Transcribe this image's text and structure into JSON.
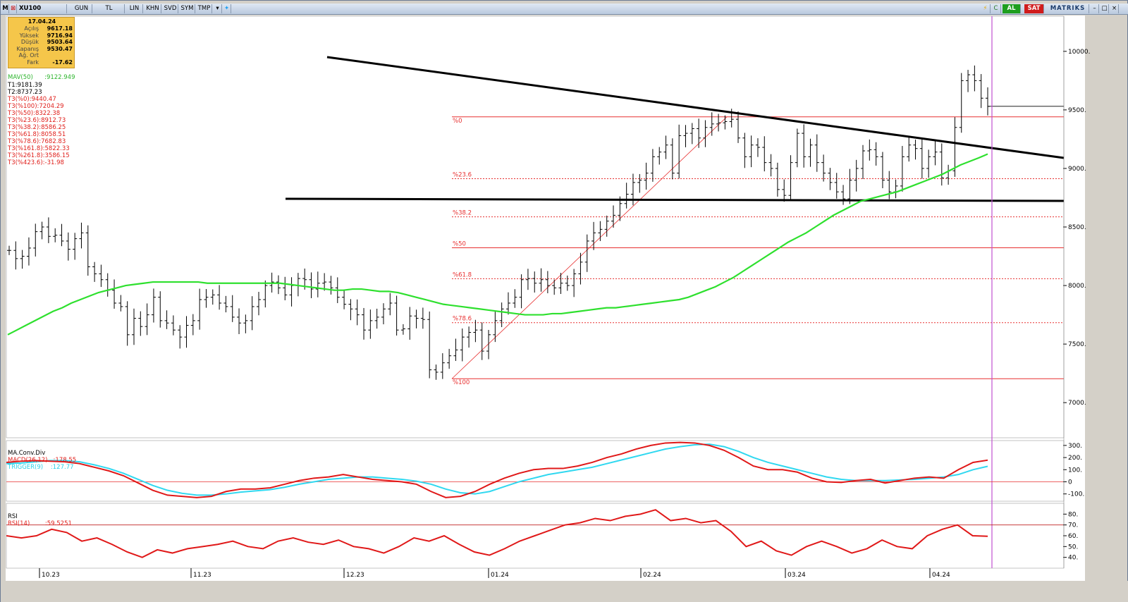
{
  "toolbar": {
    "symbol": "XU100",
    "buttons": [
      "GUN",
      "TL",
      "LIN",
      "KHN",
      "SVD",
      "SYM",
      "TMP"
    ],
    "al_label": "AL",
    "sat_label": "SAT",
    "brand": "MATRIKS",
    "colors": {
      "al": "#1e9e1e",
      "sat": "#d01c1c"
    }
  },
  "ohlc": {
    "date": "17.04.24",
    "rows": [
      {
        "k": "Açılış",
        "v": "9617.18"
      },
      {
        "k": "Yüksek",
        "v": "9716.94"
      },
      {
        "k": "Düşük",
        "v": "9503.64"
      },
      {
        "k": "Kapanış",
        "v": "9530.47"
      },
      {
        "k": "Ağ. Ort",
        "v": ""
      },
      {
        "k": "Fark",
        "v": "-17.62"
      }
    ]
  },
  "legend": {
    "mav": "MAV(50)      :9122.949",
    "t1": "T1:9181.39",
    "t2": "T2:8737.23",
    "t3": [
      "T3(%0):9440.47",
      "T3(%100):7204.29",
      "T3(%50):8322.38",
      "T3(%23.6):8912.73",
      "T3(%38.2):8586.25",
      "T3(%61.8):8058.51",
      "T3(%78.6):7682.83",
      "T3(%161.8):5822.33",
      "T3(%261.8):3586.15",
      "T3(%423.6):-31.98"
    ]
  },
  "macd_panel": {
    "title": "MA.Conv.Div",
    "macd_label": "MACD(26,12)   :178.55",
    "trigger_label": "TRIGGER(9)    :127.77"
  },
  "rsi_panel": {
    "title": "RSI",
    "rsi_label": "RSI(14)        :59.5251"
  },
  "chart_data": [
    {
      "type": "bar",
      "subtype": "ohlc",
      "x_tick_labels": [
        "10.23",
        "11.23",
        "12.23",
        "01.24",
        "02.24",
        "03.24",
        "04.24"
      ],
      "y_ticks": [
        7000,
        7500,
        8000,
        8500,
        9000,
        9500,
        10000
      ],
      "ylim": [
        6700,
        10300
      ],
      "close": [
        8300,
        8230,
        8250,
        8320,
        8460,
        8500,
        8420,
        8430,
        8380,
        8310,
        8400,
        8450,
        8160,
        8100,
        8050,
        7960,
        7850,
        7820,
        7580,
        7720,
        7650,
        7750,
        7900,
        7700,
        7680,
        7620,
        7560,
        7660,
        7700,
        7880,
        7900,
        7920,
        7850,
        7820,
        7730,
        7680,
        7700,
        7820,
        7880,
        8000,
        8030,
        7980,
        7920,
        8000,
        8060,
        8050,
        7970,
        8020,
        8030,
        7980,
        7900,
        7840,
        7800,
        7750,
        7620,
        7700,
        7730,
        7800,
        7850,
        7620,
        7630,
        7740,
        7720,
        7710,
        7280,
        7260,
        7340,
        7400,
        7450,
        7560,
        7600,
        7620,
        7440,
        7580,
        7700,
        7800,
        7850,
        7900,
        8050,
        8060,
        8020,
        8050,
        8000,
        7980,
        8020,
        8000,
        8100,
        8200,
        8380,
        8450,
        8480,
        8550,
        8600,
        8700,
        8780,
        8880,
        8900,
        8960,
        9100,
        9140,
        9200,
        8960,
        9280,
        9300,
        9340,
        9260,
        9350,
        9380,
        9390,
        9400,
        9420,
        9260,
        9100,
        9200,
        9180,
        9050,
        9000,
        8820,
        8770,
        9050,
        9300,
        9100,
        9200,
        9050,
        8960,
        8880,
        8800,
        8740,
        8900,
        9000,
        9150,
        9160,
        9100,
        8900,
        8800,
        8850,
        9100,
        9200,
        9170,
        9000,
        9100,
        9140,
        8920,
        8980,
        9350,
        9750,
        9800,
        9750,
        9600,
        9530
      ],
      "ma50": [
        7580,
        7620,
        7660,
        7700,
        7740,
        7780,
        7810,
        7850,
        7880,
        7910,
        7940,
        7960,
        7980,
        8000,
        8010,
        8020,
        8030,
        8030,
        8030,
        8030,
        8030,
        8030,
        8020,
        8020,
        8020,
        8020,
        8020,
        8020,
        8020,
        8020,
        8020,
        8010,
        8000,
        7990,
        7980,
        7970,
        7960,
        7960,
        7970,
        7970,
        7960,
        7950,
        7950,
        7940,
        7920,
        7900,
        7880,
        7860,
        7840,
        7830,
        7820,
        7810,
        7800,
        7790,
        7780,
        7770,
        7760,
        7750,
        7750,
        7750,
        7760,
        7760,
        7770,
        7780,
        7790,
        7800,
        7810,
        7810,
        7820,
        7830,
        7840,
        7850,
        7860,
        7870,
        7880,
        7900,
        7930,
        7960,
        7990,
        8030,
        8070,
        8120,
        8170,
        8220,
        8270,
        8320,
        8370,
        8410,
        8450,
        8500,
        8550,
        8600,
        8640,
        8680,
        8720,
        8740,
        8760,
        8780,
        8800,
        8830,
        8860,
        8890,
        8920,
        8950,
        8990,
        9030,
        9060,
        9090,
        9122.949
      ]
    },
    {
      "type": "line",
      "name_series": [
        "MACD(26,12)",
        "TRIGGER(9)"
      ],
      "y_ticks": [
        -100,
        0,
        100,
        200,
        300
      ],
      "ylim": [
        -160,
        340
      ],
      "macd": [
        160,
        170,
        175,
        170,
        165,
        150,
        120,
        90,
        50,
        -10,
        -70,
        -110,
        -120,
        -130,
        -120,
        -80,
        -60,
        -60,
        -50,
        -20,
        10,
        30,
        40,
        60,
        40,
        20,
        10,
        0,
        -20,
        -80,
        -130,
        -120,
        -80,
        -20,
        30,
        70,
        100,
        110,
        110,
        130,
        160,
        200,
        230,
        270,
        300,
        320,
        325,
        320,
        300,
        260,
        200,
        130,
        100,
        100,
        80,
        30,
        0,
        -5,
        10,
        20,
        -10,
        10,
        30,
        40,
        30,
        100,
        160,
        178.55
      ],
      "trigger": [
        150,
        155,
        165,
        175,
        175,
        165,
        140,
        110,
        70,
        20,
        -30,
        -70,
        -95,
        -110,
        -110,
        -100,
        -85,
        -75,
        -65,
        -45,
        -20,
        0,
        20,
        30,
        40,
        40,
        30,
        20,
        5,
        -20,
        -60,
        -90,
        -100,
        -80,
        -40,
        0,
        30,
        60,
        80,
        100,
        120,
        150,
        180,
        210,
        240,
        270,
        290,
        305,
        310,
        290,
        250,
        200,
        160,
        130,
        100,
        70,
        40,
        20,
        10,
        10,
        10,
        15,
        20,
        30,
        40,
        60,
        100,
        127.77
      ]
    },
    {
      "type": "line",
      "name_series": [
        "RSI(14)"
      ],
      "y_ticks": [
        40,
        50,
        60,
        70,
        80
      ],
      "ylim": [
        30,
        90
      ],
      "reference_line": 70,
      "rsi": [
        60,
        58,
        60,
        66,
        63,
        55,
        58,
        52,
        45,
        40,
        47,
        44,
        48,
        50,
        52,
        55,
        50,
        48,
        55,
        58,
        54,
        52,
        56,
        50,
        48,
        44,
        50,
        58,
        55,
        60,
        52,
        45,
        42,
        48,
        55,
        60,
        65,
        70,
        72,
        76,
        74,
        78,
        80,
        84,
        74,
        76,
        72,
        74,
        64,
        50,
        55,
        46,
        42,
        50,
        55,
        50,
        44,
        48,
        56,
        50,
        48,
        60,
        66,
        70,
        60,
        59.5251
      ]
    }
  ]
}
